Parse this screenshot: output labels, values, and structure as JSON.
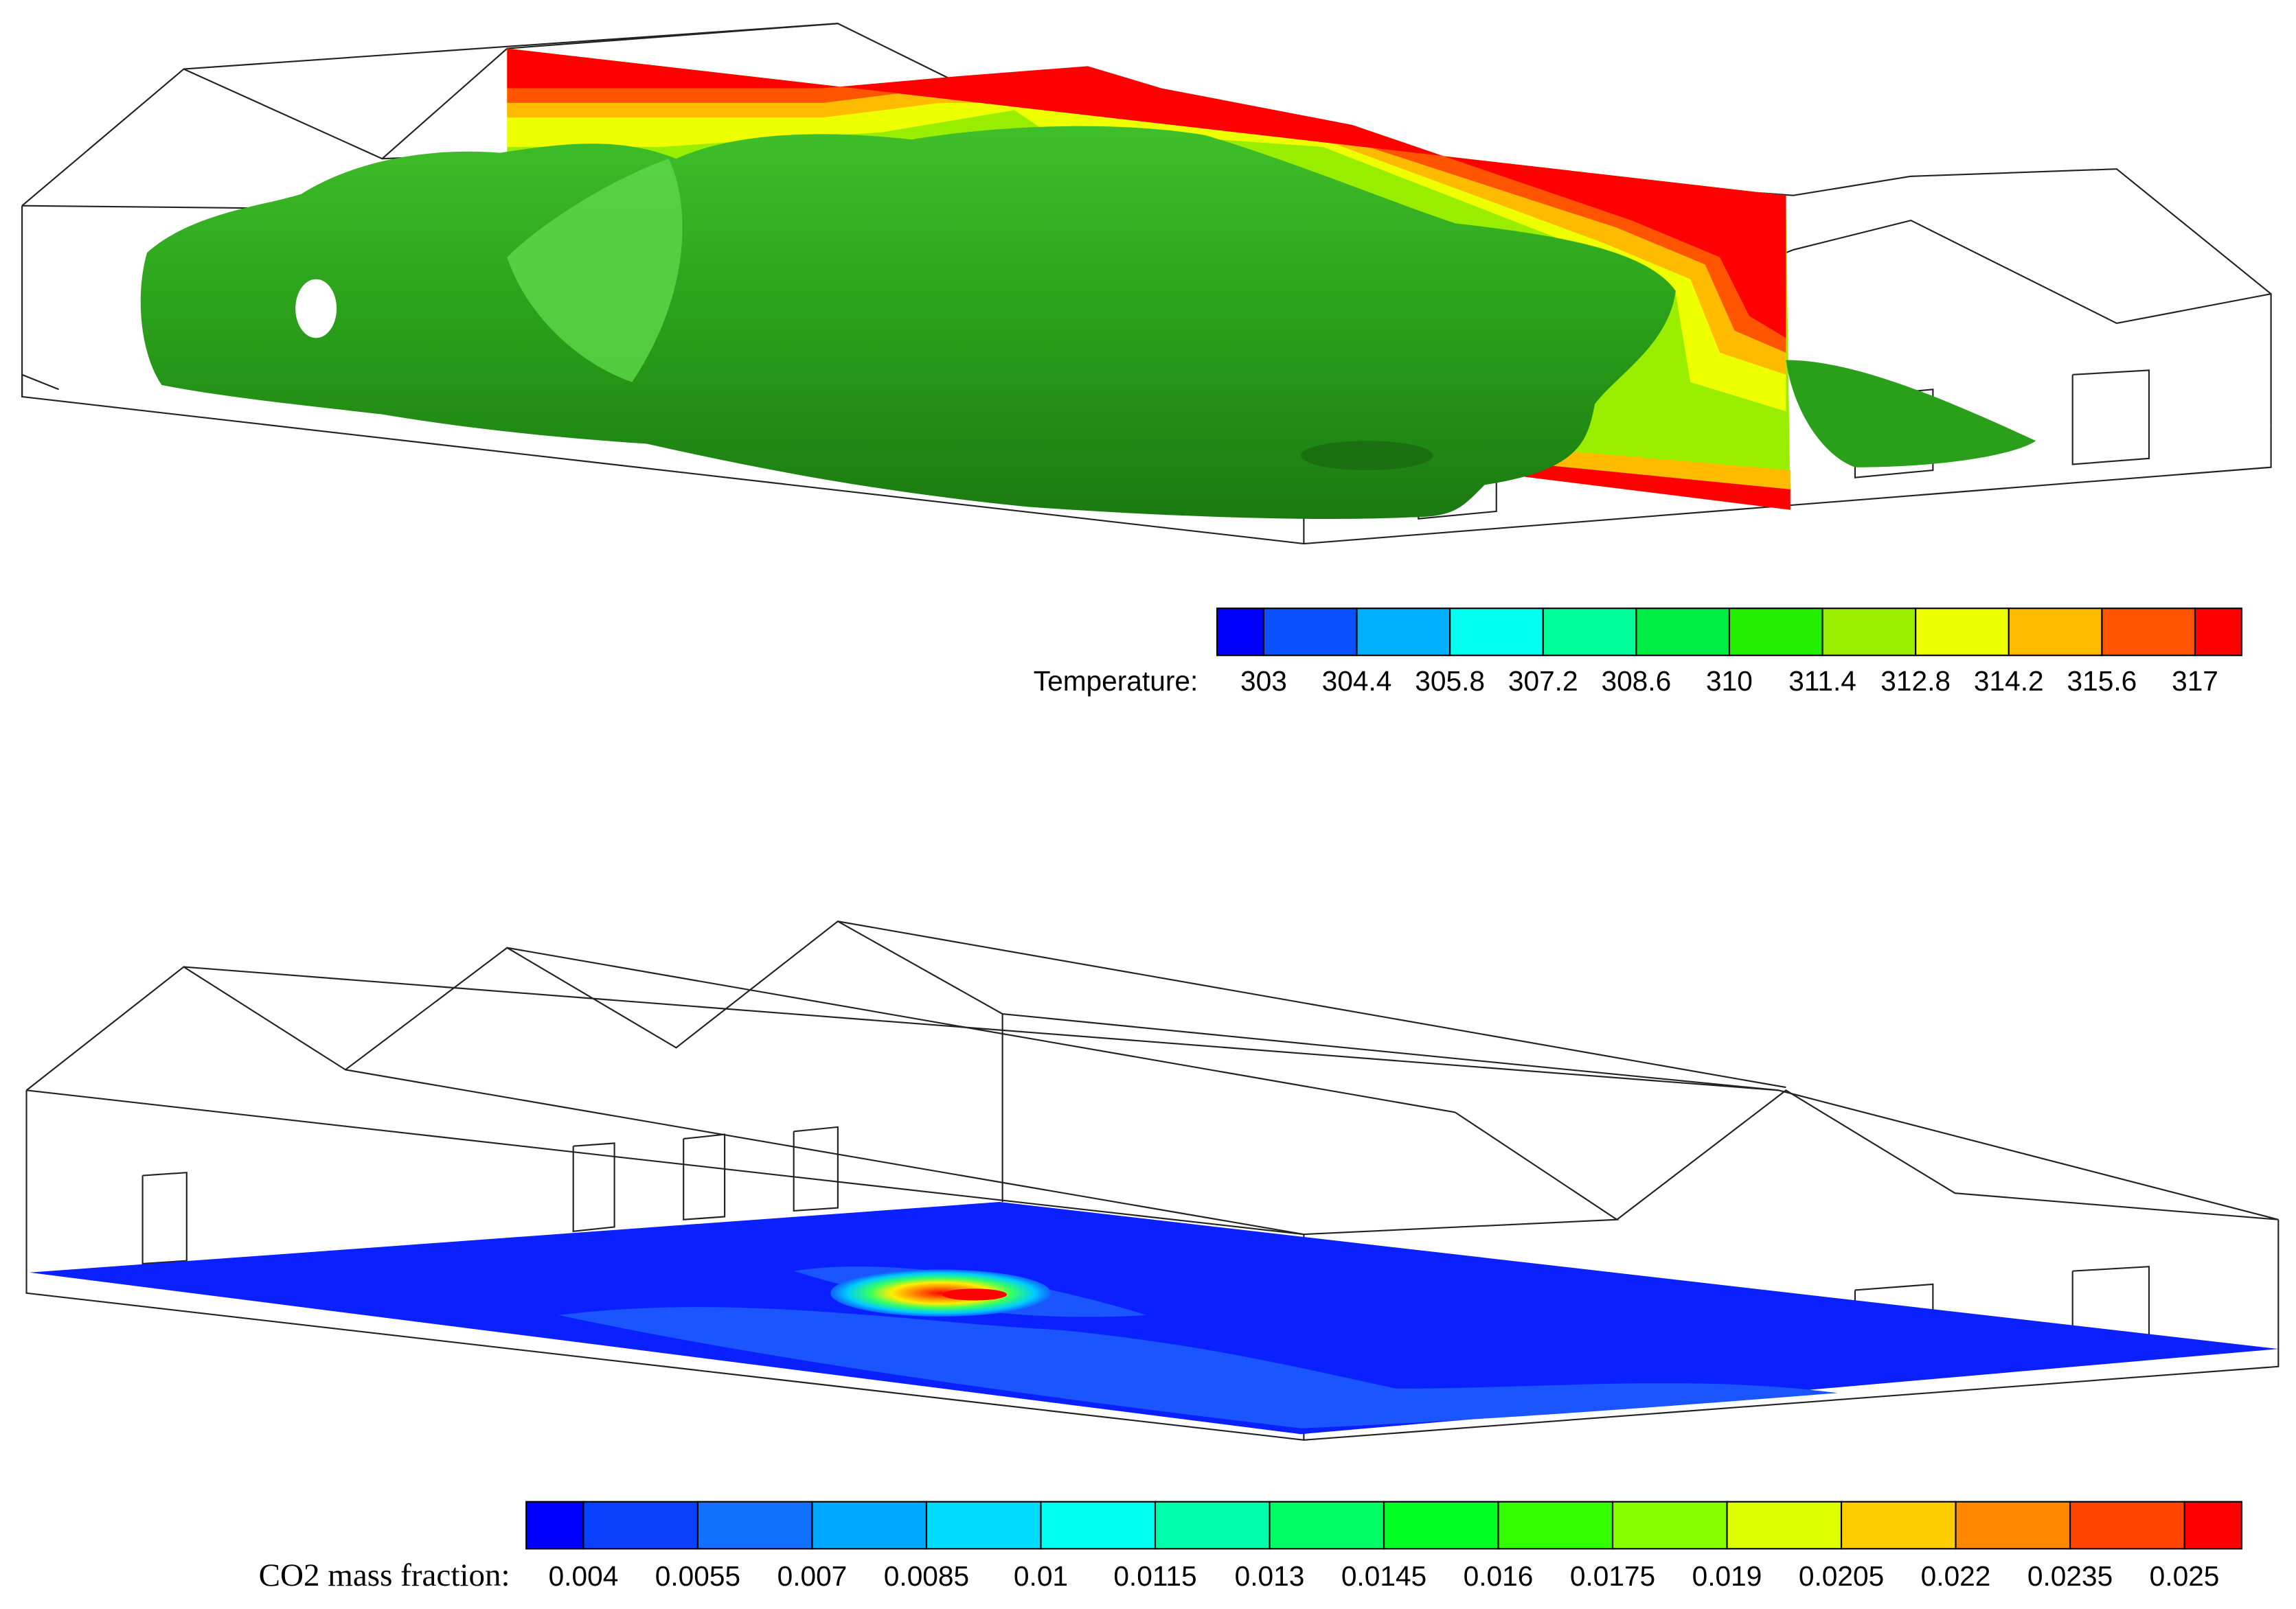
{
  "panels": [
    {
      "colorbar": {
        "label": "Temperature:",
        "levels": [
          303,
          304.4,
          305.8,
          307.2,
          308.6,
          310,
          311.4,
          312.8,
          314.2,
          315.6,
          317
        ],
        "colors": [
          "#0000ff",
          "#0a50ff",
          "#00b0ff",
          "#00ffee",
          "#00ff99",
          "#00ee44",
          "#22ee00",
          "#99ee00",
          "#eeff00",
          "#ffbb00",
          "#ff5500",
          "#ff0000"
        ]
      }
    },
    {
      "colorbar": {
        "label": "CO2 mass fraction:",
        "levels": [
          0.004,
          0.0055,
          0.007,
          0.0085,
          0.01,
          0.0115,
          0.013,
          0.0145,
          0.016,
          0.0175,
          0.019,
          0.0205,
          0.022,
          0.0235,
          0.025
        ],
        "colors": [
          "#0000ff",
          "#0a40ff",
          "#1070ff",
          "#00a8ff",
          "#00dcff",
          "#00ffee",
          "#00ffaa",
          "#00ff66",
          "#00ff22",
          "#33ff00",
          "#88ff00",
          "#ddff00",
          "#ffcc00",
          "#ff8800",
          "#ff4400",
          "#ff0000"
        ]
      }
    }
  ]
}
